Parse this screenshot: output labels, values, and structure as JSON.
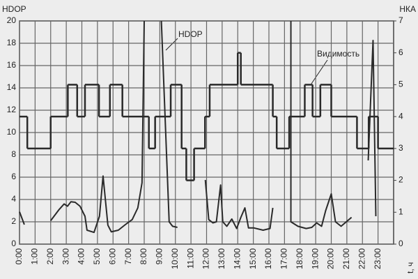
{
  "chart_data": {
    "type": "line",
    "y_label": "HDOP",
    "y2_label": "НКА",
    "x_label": "t, ч",
    "xlim": [
      0,
      24
    ],
    "ylim": [
      0,
      20
    ],
    "y2lim": [
      0,
      7
    ],
    "xticks": [
      {
        "value": 0,
        "label": "0:00"
      },
      {
        "value": 1,
        "label": "1:00"
      },
      {
        "value": 2,
        "label": "2:00"
      },
      {
        "value": 3,
        "label": "3:00"
      },
      {
        "value": 4,
        "label": "4:00"
      },
      {
        "value": 5,
        "label": "5:00"
      },
      {
        "value": 6,
        "label": "6:00"
      },
      {
        "value": 7,
        "label": "7:00"
      },
      {
        "value": 8,
        "label": "8:00"
      },
      {
        "value": 9,
        "label": "9:00"
      },
      {
        "value": 10,
        "label": "10:00"
      },
      {
        "value": 11,
        "label": "11:00"
      },
      {
        "value": 12,
        "label": "12:00"
      },
      {
        "value": 13,
        "label": "13:00"
      },
      {
        "value": 14,
        "label": "14:00"
      },
      {
        "value": 15,
        "label": "15:00"
      },
      {
        "value": 16,
        "label": "16:00"
      },
      {
        "value": 17,
        "label": "17:00"
      },
      {
        "value": 18,
        "label": "18:00"
      },
      {
        "value": 19,
        "label": "19:00"
      },
      {
        "value": 20,
        "label": "20:00"
      },
      {
        "value": 21,
        "label": "21:00"
      },
      {
        "value": 22,
        "label": "22:00"
      },
      {
        "value": 23,
        "label": "23:00"
      }
    ],
    "yticks": [
      0,
      2,
      4,
      6,
      8,
      10,
      12,
      14,
      16,
      18,
      20
    ],
    "y2ticks": [
      0,
      1,
      2,
      3,
      4,
      5,
      6,
      7
    ],
    "grid": true,
    "annotations": [
      "HDOP",
      "Видимость"
    ],
    "series": [
      {
        "name": "HDOP",
        "color": "#2a2a2a",
        "x": [
          0,
          0.31,
          null,
          2.0,
          2.54,
          2.86,
          3.08,
          3.3,
          3.57,
          3.88,
          4.2,
          4.33,
          4.78,
          5.13,
          5.36,
          5.67,
          5.89,
          6.34,
          6.79,
          7.23,
          7.59,
          7.86,
          8.0,
          null,
          9.1,
          9.6,
          9.82,
          10.13,
          null,
          11.92,
          12.14,
          12.41,
          12.63,
          12.9,
          13.04,
          13.3,
          13.62,
          13.93,
          14.2,
          14.46,
          14.69,
          15.04,
          15.63,
          16.07,
          16.25,
          null,
          17.41,
          17.41,
          17.86,
          18.39,
          18.75,
          19.06,
          19.38,
          19.64,
          20.0,
          20.27,
          20.63,
          21.3,
          null,
          22.37,
          22.68,
          22.86
        ],
        "values": [
          2.9,
          1.75,
          null,
          2.1,
          3.1,
          3.6,
          3.4,
          3.8,
          3.75,
          3.4,
          2.5,
          1.25,
          1.05,
          2.5,
          6.1,
          1.7,
          1.1,
          1.25,
          1.75,
          2.2,
          3.25,
          5.5,
          20,
          null,
          20,
          2.0,
          1.6,
          1.5,
          null,
          5.75,
          2.2,
          1.9,
          2.0,
          5.3,
          2.0,
          1.6,
          2.25,
          1.4,
          2.4,
          3.25,
          1.45,
          1.45,
          1.25,
          1.4,
          3.25,
          null,
          20,
          2.0,
          1.6,
          1.4,
          1.5,
          1.9,
          1.6,
          3.0,
          4.5,
          2.0,
          1.6,
          2.4,
          null,
          7.5,
          18.25,
          2.5
        ]
      },
      {
        "name": "Видимость",
        "color": "#2a2a2a",
        "axis": "y2",
        "step": "post",
        "x": [
          0,
          0.5,
          2,
          3.1,
          3.7,
          4.2,
          5.1,
          5.8,
          6.6,
          8.3,
          8.7,
          9.7,
          10.4,
          10.7,
          11.2,
          11.9,
          12.2,
          14.0,
          14.2,
          16.25,
          16.5,
          17.3,
          18.3,
          18.8,
          19.3,
          20.0,
          21.65,
          22.4,
          23.0
        ],
        "values": [
          4,
          3,
          4,
          5,
          4,
          5,
          4,
          5,
          4,
          3,
          4,
          5,
          3,
          2,
          3,
          4,
          5,
          6,
          5,
          4,
          3,
          4,
          5,
          4,
          5,
          4,
          3,
          4,
          3
        ]
      }
    ]
  }
}
